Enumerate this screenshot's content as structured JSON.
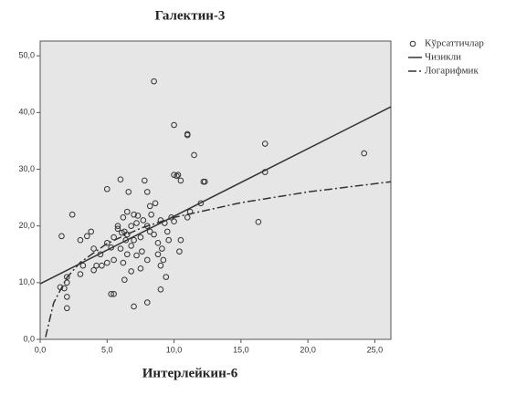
{
  "chart_data": {
    "type": "scatter",
    "title": "Галектин-3",
    "x_label": "Интерлейкин-6",
    "background": "#e6e6e6",
    "xlim": [
      0,
      26.2
    ],
    "ylim": [
      0,
      52.6
    ],
    "xticks": [
      {
        "value": 0,
        "label": "0,0"
      },
      {
        "value": 5,
        "label": "5,0"
      },
      {
        "value": 10,
        "label": "10,0"
      },
      {
        "value": 15,
        "label": "15,0"
      },
      {
        "value": 20,
        "label": "20,0"
      },
      {
        "value": 25,
        "label": "25,0"
      }
    ],
    "yticks": [
      {
        "value": 0,
        "label": "0,0"
      },
      {
        "value": 10,
        "label": "10,0"
      },
      {
        "value": 20,
        "label": "20,0"
      },
      {
        "value": 30,
        "label": "30,0"
      },
      {
        "value": 40,
        "label": "40,0"
      },
      {
        "value": 50,
        "label": "50,0"
      }
    ],
    "series": [
      {
        "name": "Кўрсаттичлар",
        "kind": "marker",
        "color": "#333333",
        "x": [
          8.5,
          10,
          11,
          11,
          10,
          10.3,
          10.2,
          11.5,
          12.2,
          12.3,
          16.8,
          16.8,
          24.2,
          6,
          7.8,
          5,
          8,
          2.4,
          1.6,
          3,
          3.5,
          3.8,
          4,
          4.2,
          4,
          3,
          2,
          2,
          1.8,
          1.5,
          2,
          2,
          5.3,
          5.5,
          7,
          8,
          9,
          9.4,
          9,
          6.3,
          6.8,
          7.5,
          6.2,
          5.5,
          5,
          4.5,
          5,
          5.5,
          5.8,
          6.1,
          6.3,
          6.5,
          6.4,
          6,
          6.8,
          7,
          7.2,
          7,
          6.5,
          6.2,
          7.3,
          7.7,
          8,
          8.2,
          8.5,
          8.3,
          8.2,
          8.6,
          9,
          9.3,
          9.5,
          9.6,
          9.8,
          10,
          10.5,
          11,
          10.4,
          9.1,
          8.8,
          7.6,
          7.2,
          8,
          6.5,
          5.3,
          4.6,
          3.2,
          16.3,
          10.5,
          12,
          11.2,
          6.8,
          7.5,
          8.8,
          9.2,
          5.8,
          6.6
        ],
        "values": [
          45.5,
          37.8,
          36,
          36.2,
          29,
          29,
          28.8,
          32.5,
          27.8,
          27.8,
          34.5,
          29.5,
          32.8,
          28.2,
          28,
          26.5,
          26,
          22,
          18.2,
          17.5,
          18.2,
          19,
          16,
          13,
          12.2,
          11.5,
          11,
          10,
          9,
          9.2,
          7.5,
          5.5,
          8,
          8,
          5.8,
          6.5,
          8.8,
          11,
          13,
          10.5,
          12,
          12.5,
          13.5,
          14,
          13.5,
          15,
          17,
          18,
          19.5,
          18.8,
          19,
          18.5,
          17.5,
          16,
          16.5,
          17.5,
          20.5,
          22,
          22.5,
          21.5,
          21.8,
          21,
          20,
          19,
          18.5,
          22,
          23.5,
          24,
          21,
          20.5,
          19,
          17.5,
          21.5,
          20.8,
          17.5,
          21.5,
          15.5,
          16,
          15,
          15.5,
          14.8,
          14,
          15,
          16.2,
          13,
          13,
          20.7,
          28,
          24,
          22.5,
          20,
          18,
          17,
          14,
          20,
          26
        ]
      },
      {
        "name": "Чизикли",
        "kind": "line",
        "dash": "solid",
        "color": "#333333",
        "x": [
          0,
          26.2
        ],
        "values": [
          9.8,
          41
        ]
      },
      {
        "name": "Логарифмик",
        "kind": "line",
        "dash": "dash-dot",
        "color": "#333333",
        "x": [
          0.4,
          1,
          2,
          3,
          5,
          7.5,
          10,
          15,
          20,
          26.2
        ],
        "values": [
          0.4,
          6.4,
          10.9,
          13.6,
          16.9,
          19.6,
          21.5,
          24.1,
          26.0,
          27.8
        ]
      }
    ]
  }
}
